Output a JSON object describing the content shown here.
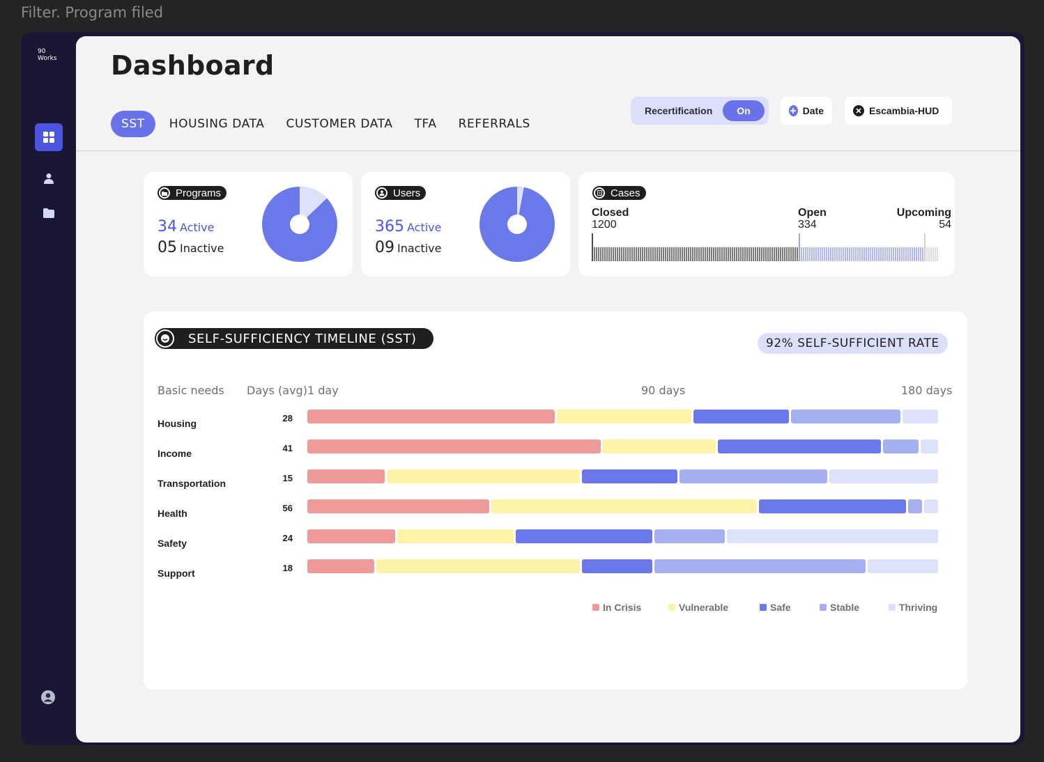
{
  "top_caption": "Filter. Program filed",
  "sidebar": {
    "logo_line1": "90",
    "logo_line2": "Works"
  },
  "page_title": "Dashboard",
  "tabs": [
    "SST",
    "HOUSING DATA",
    "CUSTOMER DATA",
    "TFA",
    "REFERRALS"
  ],
  "filters": {
    "recertification_label": "Recertification",
    "recertification_state": "On",
    "date_label": "Date",
    "org_label": "Escambia-HUD"
  },
  "programs": {
    "label": "Programs",
    "active_count": "34",
    "active_word": "Active",
    "inactive_count": "05",
    "inactive_word": "Inactive",
    "active_value": 34,
    "inactive_value": 5
  },
  "users": {
    "label": "Users",
    "active_count": "365",
    "active_word": "Active",
    "inactive_count": "09",
    "inactive_word": "Inactive",
    "active_value": 365,
    "inactive_value": 9
  },
  "cases": {
    "label": "Cases",
    "closed_label": "Closed",
    "closed_value": "1200",
    "open_label": "Open",
    "open_value": "334",
    "upcoming_label": "Upcoming",
    "upcoming_value": "54"
  },
  "sst": {
    "title": "SELF-SUFFICIENCY TIMELINE (SST)",
    "rate": "92% SELF-SUFFICIENT RATE",
    "col_needs": "Basic needs",
    "col_days": "Days (avg)",
    "axis_start": "1 day",
    "axis_mid": "90 days",
    "axis_end": "180 days"
  },
  "colors": {
    "crisis": "#ef9a9a",
    "vulnerable": "#fdf3a6",
    "safe": "#6a78ea",
    "stable": "#a5aff2",
    "thriving": "#dde1fa",
    "accent": "#4c55e0"
  },
  "chart_data": {
    "type": "bar",
    "stacked": true,
    "orientation": "horizontal",
    "categories": [
      "Housing",
      "Income",
      "Transportation",
      "Health",
      "Safety",
      "Support"
    ],
    "days_avg": [
      "28",
      "41",
      "15",
      "56",
      "24",
      "18"
    ],
    "x_range": [
      1,
      180
    ],
    "series": [
      {
        "name": "In Crisis",
        "values": [
          70,
          83,
          22,
          52,
          25,
          19
        ]
      },
      {
        "name": "Vulnerable",
        "values": [
          38,
          32,
          55,
          76,
          33,
          58
        ]
      },
      {
        "name": "Safe",
        "values": [
          27,
          46,
          27,
          42,
          39,
          20
        ]
      },
      {
        "name": "Stable",
        "values": [
          31,
          10,
          42,
          4,
          20,
          60
        ]
      },
      {
        "name": "Thriving",
        "values": [
          10,
          5,
          31,
          4,
          60,
          20
        ]
      }
    ]
  }
}
